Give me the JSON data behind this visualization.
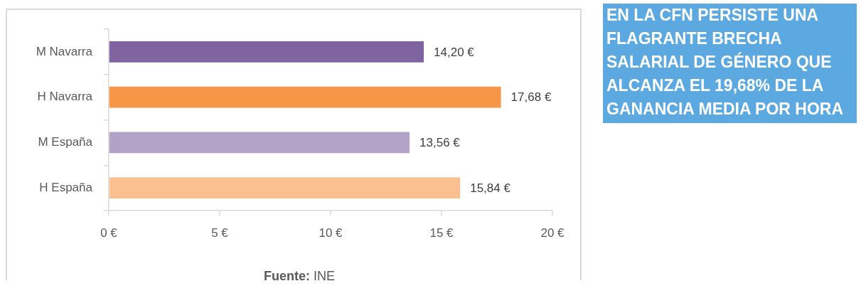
{
  "chart_data": {
    "type": "bar",
    "orientation": "horizontal",
    "categories": [
      "M Navarra",
      "H Navarra",
      "M España",
      "H España"
    ],
    "values": [
      14.2,
      17.68,
      13.56,
      15.84
    ],
    "colors": [
      "#8064a2",
      "#f79646",
      "#b3a2c7",
      "#fac090"
    ],
    "value_labels": [
      "14,20 €",
      "17,68 €",
      "13,56 €",
      "15,84 €"
    ],
    "xlim": [
      0,
      20
    ],
    "xticks": [
      {
        "value": 0,
        "label": "0 €"
      },
      {
        "value": 5,
        "label": "5 €"
      },
      {
        "value": 10,
        "label": "10 €"
      },
      {
        "value": 15,
        "label": "15 €"
      },
      {
        "value": 20,
        "label": "20 €"
      }
    ],
    "annotations": [
      "EN LA CFN PERSISTE UNA FLAGRANTE BRECHA SALARIAL DE GÉNERO QUE ALCANZA EL 19,68% DE LA GANANCIA MEDIA POR HORA",
      "Fuente: INE"
    ]
  }
}
